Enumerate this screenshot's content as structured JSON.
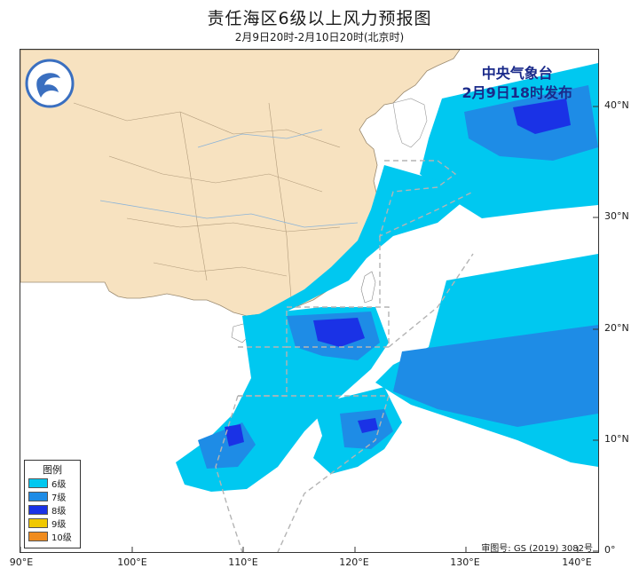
{
  "title": "责任海区6级以上风力预报图",
  "subtitle": "2月9日20时-2月10日20时(北京时)",
  "issuer": {
    "line1": "中央气象台",
    "line2": "2月9日18时发布"
  },
  "lat_labels": [
    "40°N",
    "30°N",
    "20°N",
    "10°N",
    "0°"
  ],
  "lon_labels": [
    "90°E",
    "100°E",
    "110°E",
    "120°E",
    "130°E",
    "140°E"
  ],
  "legend": {
    "title": "图例",
    "items": [
      {
        "label": "6级",
        "color": "#00c8f0"
      },
      {
        "label": "7级",
        "color": "#1e8ce6"
      },
      {
        "label": "8级",
        "color": "#1a32e6"
      },
      {
        "label": "9级",
        "color": "#f0c800"
      },
      {
        "label": "10级",
        "color": "#f08c1e"
      }
    ]
  },
  "approval": "审图号: GS (2019) 3082号",
  "colors": {
    "land_china": "#f7e2c0",
    "level6": "#00c8f0",
    "level7": "#1e8ce6",
    "level8": "#1a32e6"
  },
  "icons": [
    "cma-logo-icon"
  ]
}
